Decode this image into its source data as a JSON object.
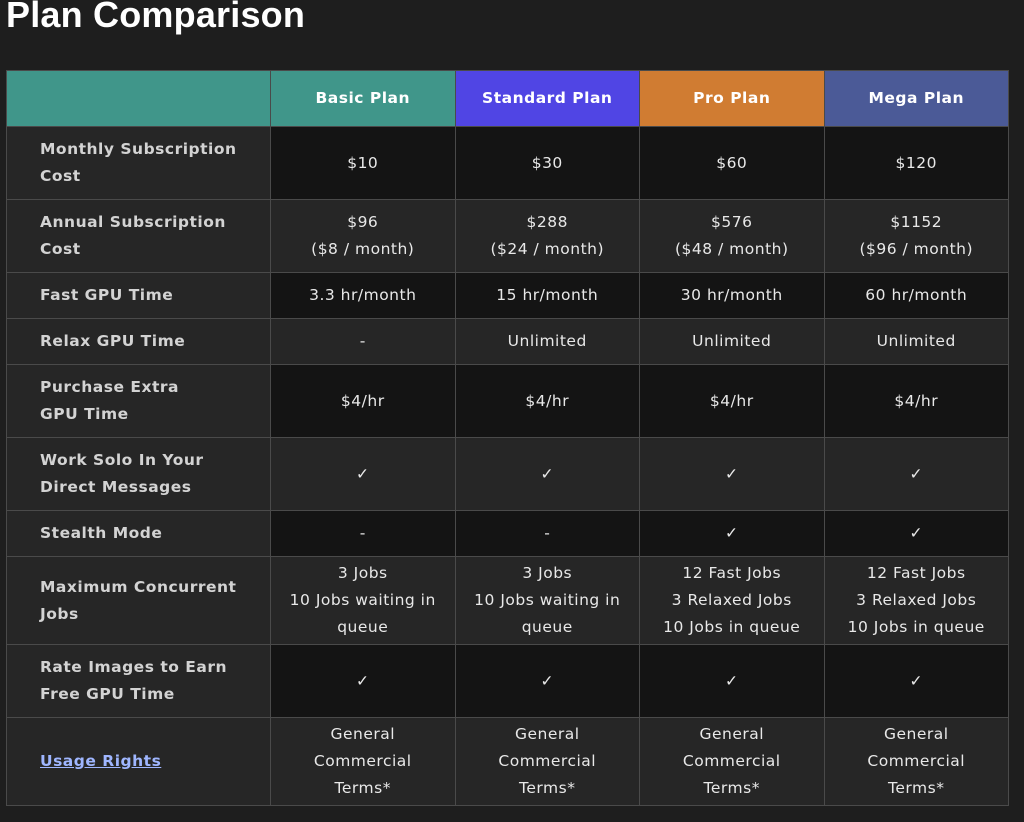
{
  "title": "Plan Comparison",
  "plans": [
    {
      "name": "Basic Plan",
      "color": "#40968a"
    },
    {
      "name": "Standard Plan",
      "color": "#5045e4"
    },
    {
      "name": "Pro Plan",
      "color": "#d07c32"
    },
    {
      "name": "Mega Plan",
      "color": "#4b5a97"
    }
  ],
  "rows": [
    {
      "feature": [
        "Monthly Subscription",
        "Cost"
      ],
      "values": [
        [
          "$10"
        ],
        [
          "$30"
        ],
        [
          "$60"
        ],
        [
          "$120"
        ]
      ]
    },
    {
      "feature": [
        "Annual Subscription",
        "Cost"
      ],
      "values": [
        [
          "$96",
          "($8 / month)"
        ],
        [
          "$288",
          "($24 / month)"
        ],
        [
          "$576",
          "($48 / month)"
        ],
        [
          "$1152",
          "($96 / month)"
        ]
      ]
    },
    {
      "feature": [
        "Fast GPU Time"
      ],
      "values": [
        [
          "3.3 hr/month"
        ],
        [
          "15 hr/month"
        ],
        [
          "30 hr/month"
        ],
        [
          "60 hr/month"
        ]
      ]
    },
    {
      "feature": [
        "Relax GPU Time"
      ],
      "values": [
        [
          "-"
        ],
        [
          "Unlimited"
        ],
        [
          "Unlimited"
        ],
        [
          "Unlimited"
        ]
      ]
    },
    {
      "feature": [
        "Purchase Extra",
        "GPU Time"
      ],
      "values": [
        [
          "$4/hr"
        ],
        [
          "$4/hr"
        ],
        [
          "$4/hr"
        ],
        [
          "$4/hr"
        ]
      ]
    },
    {
      "feature": [
        "Work Solo In Your",
        "Direct Messages"
      ],
      "values": [
        [
          "✓"
        ],
        [
          "✓"
        ],
        [
          "✓"
        ],
        [
          "✓"
        ]
      ]
    },
    {
      "feature": [
        "Stealth Mode"
      ],
      "values": [
        [
          "-"
        ],
        [
          "-"
        ],
        [
          "✓"
        ],
        [
          "✓"
        ]
      ]
    },
    {
      "feature": [
        "Maximum Concurrent",
        "Jobs"
      ],
      "values": [
        [
          "3 Jobs",
          "10 Jobs waiting in",
          "queue"
        ],
        [
          "3 Jobs",
          "10 Jobs waiting in",
          "queue"
        ],
        [
          "12 Fast Jobs",
          "3 Relaxed Jobs",
          "10 Jobs in queue"
        ],
        [
          "12 Fast Jobs",
          "3 Relaxed Jobs",
          "10 Jobs in queue"
        ]
      ]
    },
    {
      "feature": [
        "Rate Images to Earn",
        "Free GPU Time"
      ],
      "values": [
        [
          "✓"
        ],
        [
          "✓"
        ],
        [
          "✓"
        ],
        [
          "✓"
        ]
      ]
    },
    {
      "feature": [
        "Usage Rights"
      ],
      "link": true,
      "values": [
        [
          "General",
          "Commercial",
          "Terms*"
        ],
        [
          "General",
          "Commercial",
          "Terms*"
        ],
        [
          "General",
          "Commercial",
          "Terms*"
        ],
        [
          "General",
          "Commercial",
          "Terms*"
        ]
      ]
    }
  ]
}
